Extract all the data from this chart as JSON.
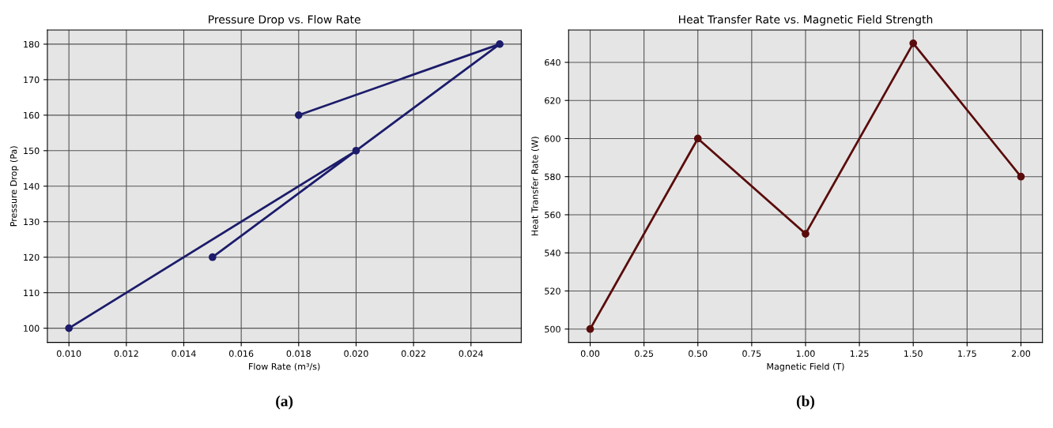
{
  "chart_data": [
    {
      "type": "line",
      "title": "Pressure Drop vs. Flow Rate",
      "xlabel": "Flow Rate (m³/s)",
      "ylabel": "Pressure Drop (Pa)",
      "x": [
        0.01,
        0.02,
        0.015,
        0.025,
        0.018
      ],
      "series": [
        {
          "color": "#1c1c6b",
          "values": [
            100,
            150,
            120,
            180,
            160
          ]
        }
      ],
      "xlim": [
        0.00925,
        0.02575
      ],
      "xticks": [
        {
          "value": 0.01,
          "label": "0.010"
        },
        {
          "value": 0.012,
          "label": "0.012"
        },
        {
          "value": 0.014,
          "label": "0.014"
        },
        {
          "value": 0.016,
          "label": "0.016"
        },
        {
          "value": 0.018,
          "label": "0.018"
        },
        {
          "value": 0.02,
          "label": "0.020"
        },
        {
          "value": 0.022,
          "label": "0.022"
        },
        {
          "value": 0.024,
          "label": "0.024"
        }
      ],
      "ylim": [
        96,
        184
      ],
      "yticks": [
        100,
        110,
        120,
        130,
        140,
        150,
        160,
        170,
        180
      ],
      "grid": true,
      "marker": "circle",
      "line_style": "solid",
      "annotations": [
        "(a)"
      ]
    },
    {
      "type": "line",
      "title": "Heat Transfer Rate vs. Magnetic Field Strength",
      "xlabel": "Magnetic Field (T)",
      "ylabel": "Heat Transfer Rate (W)",
      "x": [
        0,
        0.5,
        1.0,
        1.5,
        2.0
      ],
      "series": [
        {
          "color": "#5a0c0c",
          "values": [
            500,
            600,
            550,
            650,
            580
          ]
        }
      ],
      "xlim": [
        -0.1,
        2.1
      ],
      "xticks": [
        {
          "value": 0,
          "label": "0.00"
        },
        {
          "value": 0.25,
          "label": "0.25"
        },
        {
          "value": 0.5,
          "label": "0.50"
        },
        {
          "value": 0.75,
          "label": "0.75"
        },
        {
          "value": 1.0,
          "label": "1.00"
        },
        {
          "value": 1.25,
          "label": "1.25"
        },
        {
          "value": 1.5,
          "label": "1.50"
        },
        {
          "value": 1.75,
          "label": "1.75"
        },
        {
          "value": 2.0,
          "label": "2.00"
        }
      ],
      "ylim": [
        493,
        657
      ],
      "yticks": [
        500,
        520,
        540,
        560,
        580,
        600,
        620,
        640
      ],
      "grid": true,
      "marker": "circle",
      "line_style": "solid",
      "annotations": [
        "(b)"
      ]
    }
  ]
}
